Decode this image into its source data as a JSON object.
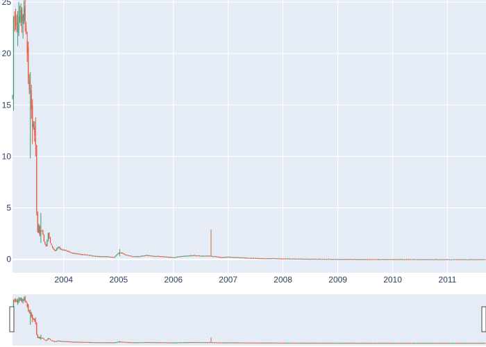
{
  "chart_data": {
    "type": "candlestick",
    "title": "",
    "xlabel": "",
    "ylabel": "",
    "x_range": [
      "2003-01-25",
      "2011-09-15"
    ],
    "ylim": [
      -1.3,
      25.2
    ],
    "y_ticks": [
      0,
      5,
      10,
      15,
      20,
      25
    ],
    "y_tick_labels": [
      "0",
      "5",
      "10",
      "15",
      "20",
      "25"
    ],
    "x_ticks": [
      "2004-01-01",
      "2005-01-01",
      "2006-01-01",
      "2007-01-01",
      "2008-01-01",
      "2009-01-01",
      "2010-01-01",
      "2011-01-01"
    ],
    "x_tick_labels": [
      "2004",
      "2005",
      "2006",
      "2007",
      "2008",
      "2009",
      "2010",
      "2011"
    ],
    "grid": true,
    "legend": "none",
    "rangeslider": true,
    "increasing_color": "#3d9970",
    "decreasing_color": "#e8533a",
    "plot_bg": "#e5ecf6",
    "grid_color": "#ffffff",
    "close_path": [
      [
        "2003-01-25",
        15.8
      ],
      [
        "2003-02-01",
        23.5
      ],
      [
        "2003-02-20",
        23.4
      ],
      [
        "2003-03-10",
        23.7
      ],
      [
        "2003-03-25",
        23.2
      ],
      [
        "2003-04-05",
        24.0
      ],
      [
        "2003-04-15",
        23.6
      ],
      [
        "2003-04-25",
        22.8
      ],
      [
        "2003-05-05",
        19.5
      ],
      [
        "2003-05-12",
        17.2
      ],
      [
        "2003-05-20",
        15.4
      ],
      [
        "2003-05-26",
        17.5
      ],
      [
        "2003-06-01",
        13.6
      ],
      [
        "2003-06-08",
        12.3
      ],
      [
        "2003-06-15",
        13.9
      ],
      [
        "2003-06-22",
        11.8
      ],
      [
        "2003-06-29",
        10.5
      ],
      [
        "2003-07-06",
        3.6
      ],
      [
        "2003-07-12",
        2.6
      ],
      [
        "2003-07-20",
        3.3
      ],
      [
        "2003-07-28",
        2.1
      ],
      [
        "2003-08-05",
        3.2
      ],
      [
        "2003-08-15",
        2.4
      ],
      [
        "2003-08-25",
        1.7
      ],
      [
        "2003-09-05",
        1.2
      ],
      [
        "2003-09-20",
        2.6
      ],
      [
        "2003-10-05",
        1.5
      ],
      [
        "2003-10-20",
        1.1
      ],
      [
        "2003-11-05",
        0.8
      ],
      [
        "2003-11-25",
        1.2
      ],
      [
        "2003-12-10",
        1.0
      ],
      [
        "2004-01-10",
        0.9
      ],
      [
        "2004-02-10",
        0.7
      ],
      [
        "2004-03-10",
        0.6
      ],
      [
        "2004-04-20",
        0.5
      ],
      [
        "2004-06-01",
        0.45
      ],
      [
        "2004-07-15",
        0.35
      ],
      [
        "2004-09-01",
        0.3
      ],
      [
        "2004-10-15",
        0.3
      ],
      [
        "2004-12-01",
        0.2
      ],
      [
        "2005-01-05",
        0.7
      ],
      [
        "2005-02-15",
        0.45
      ],
      [
        "2005-04-01",
        0.3
      ],
      [
        "2005-05-15",
        0.3
      ],
      [
        "2005-07-01",
        0.4
      ],
      [
        "2005-08-15",
        0.35
      ],
      [
        "2005-10-01",
        0.3
      ],
      [
        "2005-11-15",
        0.25
      ],
      [
        "2006-01-01",
        0.2
      ],
      [
        "2006-02-15",
        0.3
      ],
      [
        "2006-04-01",
        0.35
      ],
      [
        "2006-05-15",
        0.4
      ],
      [
        "2006-07-01",
        0.35
      ],
      [
        "2006-08-20",
        0.35
      ],
      [
        "2006-10-01",
        0.3
      ],
      [
        "2006-11-15",
        0.2
      ],
      [
        "2007-01-01",
        0.25
      ],
      [
        "2007-03-01",
        0.2
      ],
      [
        "2007-05-01",
        0.15
      ],
      [
        "2007-07-01",
        0.12
      ],
      [
        "2007-09-01",
        0.1
      ],
      [
        "2007-11-01",
        0.1
      ],
      [
        "2008-01-01",
        0.08
      ],
      [
        "2008-04-01",
        0.06
      ],
      [
        "2008-07-01",
        0.05
      ],
      [
        "2008-10-01",
        0.04
      ],
      [
        "2009-01-01",
        0.03
      ],
      [
        "2009-06-01",
        0.02
      ],
      [
        "2010-01-01",
        0.02
      ],
      [
        "2010-06-01",
        0.01
      ],
      [
        "2011-01-01",
        0.01
      ],
      [
        "2011-09-15",
        0.01
      ]
    ],
    "notable_spikes": [
      {
        "date": "2003-05-25",
        "high": 18.2,
        "low": 9.8
      },
      {
        "date": "2003-06-10",
        "high": 14.0,
        "low": 11.2
      },
      {
        "date": "2003-06-25",
        "high": 13.8,
        "low": 10.0
      },
      {
        "date": "2003-08-01",
        "high": 4.5,
        "low": 1.6
      },
      {
        "date": "2006-09-10",
        "high": 2.9,
        "low": 0.3
      },
      {
        "date": "2005-01-08",
        "high": 1.0,
        "low": 0.3
      }
    ]
  }
}
